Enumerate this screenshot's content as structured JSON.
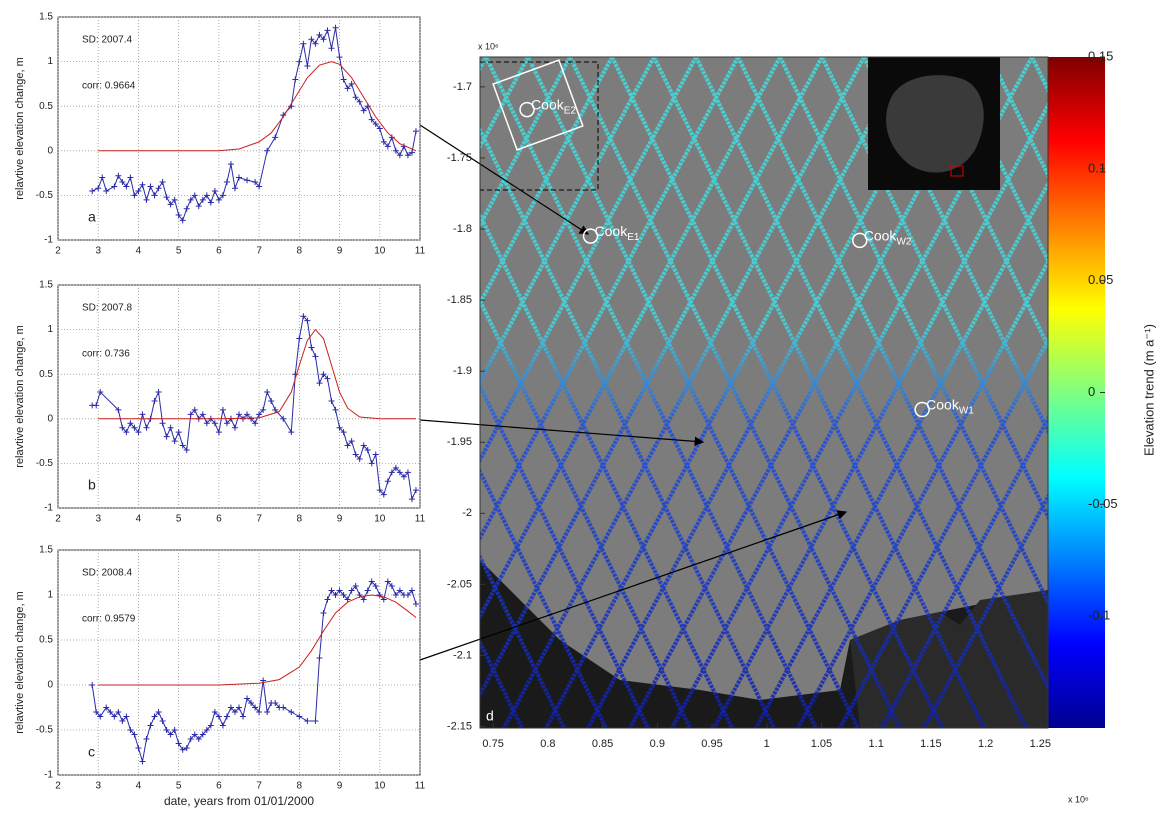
{
  "chart_data": [
    {
      "type": "line",
      "panel_label": "a",
      "annotations": [
        "SD: 2007.4",
        "corr: 0.9664"
      ],
      "ylabel": "relavtive elevation change, m",
      "xlim": [
        2,
        11
      ],
      "ylim": [
        -1,
        1.5
      ],
      "xticks": [
        2,
        3,
        4,
        5,
        6,
        7,
        8,
        9,
        10,
        11
      ],
      "yticks": [
        -1,
        -0.5,
        0,
        0.5,
        1,
        1.5
      ],
      "grid": true,
      "series": [
        {
          "color": "#2a2aa8",
          "marker": "+",
          "x": [
            2.85,
            3.0,
            3.1,
            3.2,
            3.4,
            3.5,
            3.6,
            3.7,
            3.8,
            3.9,
            4.0,
            4.1,
            4.2,
            4.3,
            4.4,
            4.5,
            4.6,
            4.7,
            4.8,
            4.9,
            5.0,
            5.1,
            5.2,
            5.3,
            5.4,
            5.5,
            5.6,
            5.7,
            5.8,
            5.9,
            6.0,
            6.1,
            6.2,
            6.3,
            6.4,
            6.5,
            6.7,
            6.9,
            7.0,
            7.2,
            7.4,
            7.6,
            7.8,
            7.9,
            8.0,
            8.1,
            8.2,
            8.3,
            8.4,
            8.5,
            8.6,
            8.7,
            8.8,
            8.9,
            9.0,
            9.1,
            9.2,
            9.3,
            9.4,
            9.5,
            9.6,
            9.7,
            9.8,
            9.9,
            10.0,
            10.1,
            10.2,
            10.3,
            10.4,
            10.5,
            10.6,
            10.7,
            10.8,
            10.9
          ],
          "values": [
            -0.45,
            -0.42,
            -0.3,
            -0.45,
            -0.4,
            -0.28,
            -0.35,
            -0.4,
            -0.3,
            -0.5,
            -0.45,
            -0.38,
            -0.55,
            -0.4,
            -0.5,
            -0.42,
            -0.35,
            -0.52,
            -0.6,
            -0.55,
            -0.72,
            -0.78,
            -0.65,
            -0.55,
            -0.5,
            -0.62,
            -0.55,
            -0.5,
            -0.58,
            -0.45,
            -0.55,
            -0.5,
            -0.35,
            -0.15,
            -0.42,
            -0.3,
            -0.33,
            -0.35,
            -0.4,
            0.0,
            0.15,
            0.4,
            0.5,
            0.8,
            1.0,
            1.2,
            0.95,
            1.25,
            1.2,
            1.3,
            1.25,
            1.35,
            1.15,
            1.38,
            1.05,
            0.8,
            0.7,
            0.75,
            0.6,
            0.55,
            0.45,
            0.5,
            0.35,
            0.3,
            0.25,
            0.1,
            0.05,
            0.15,
            0.0,
            -0.05,
            0.05,
            -0.05,
            -0.02,
            0.22
          ]
        },
        {
          "color": "#c8201e",
          "x": [
            3,
            4,
            5,
            6,
            6.5,
            7,
            7.3,
            7.6,
            7.9,
            8.2,
            8.5,
            8.8,
            9.0,
            9.3,
            9.6,
            9.9,
            10.2,
            10.5,
            10.9
          ],
          "values": [
            0,
            0,
            0,
            0,
            0.02,
            0.1,
            0.2,
            0.38,
            0.6,
            0.82,
            0.96,
            1.0,
            0.97,
            0.82,
            0.6,
            0.38,
            0.2,
            0.08,
            0.0
          ]
        }
      ]
    },
    {
      "type": "line",
      "panel_label": "b",
      "annotations": [
        "SD: 2007.8",
        "corr: 0.736"
      ],
      "ylabel": "relavtive elevation change, m",
      "xlim": [
        2,
        11
      ],
      "ylim": [
        -1,
        1.5
      ],
      "xticks": [
        2,
        3,
        4,
        5,
        6,
        7,
        8,
        9,
        10,
        11
      ],
      "yticks": [
        -1,
        -0.5,
        0,
        0.5,
        1,
        1.5
      ],
      "grid": true,
      "series": [
        {
          "color": "#2a2aa8",
          "marker": "+",
          "x": [
            2.85,
            2.95,
            3.05,
            3.5,
            3.6,
            3.7,
            3.8,
            3.9,
            4.0,
            4.1,
            4.2,
            4.3,
            4.4,
            4.5,
            4.6,
            4.7,
            4.8,
            4.9,
            5.0,
            5.1,
            5.2,
            5.3,
            5.4,
            5.5,
            5.6,
            5.7,
            5.8,
            5.9,
            6.0,
            6.1,
            6.2,
            6.3,
            6.4,
            6.5,
            6.6,
            6.7,
            6.8,
            6.9,
            7.0,
            7.1,
            7.2,
            7.3,
            7.4,
            7.6,
            7.8,
            7.9,
            8.0,
            8.1,
            8.2,
            8.3,
            8.4,
            8.5,
            8.6,
            8.7,
            8.8,
            8.9,
            9.0,
            9.1,
            9.2,
            9.3,
            9.4,
            9.5,
            9.6,
            9.7,
            9.8,
            9.9,
            10.0,
            10.1,
            10.2,
            10.3,
            10.4,
            10.5,
            10.6,
            10.7,
            10.8,
            10.9
          ],
          "values": [
            0.15,
            0.15,
            0.3,
            0.1,
            -0.1,
            -0.15,
            -0.05,
            -0.1,
            -0.15,
            0.05,
            -0.1,
            0.0,
            0.2,
            0.3,
            -0.05,
            -0.2,
            -0.1,
            -0.25,
            -0.15,
            -0.3,
            -0.35,
            0.05,
            0.1,
            0.0,
            0.05,
            -0.05,
            0.0,
            -0.05,
            -0.15,
            0.1,
            -0.05,
            0.0,
            -0.1,
            0.05,
            0.0,
            0.05,
            0.0,
            -0.05,
            0.05,
            0.1,
            0.3,
            0.2,
            0.1,
            0.0,
            -0.15,
            0.5,
            0.9,
            1.15,
            1.1,
            0.8,
            0.7,
            0.4,
            0.5,
            0.45,
            0.2,
            0.1,
            -0.1,
            -0.15,
            -0.3,
            -0.25,
            -0.4,
            -0.45,
            -0.3,
            -0.35,
            -0.5,
            -0.4,
            -0.8,
            -0.85,
            -0.7,
            -0.6,
            -0.55,
            -0.6,
            -0.65,
            -0.6,
            -0.9,
            -0.8
          ]
        },
        {
          "color": "#c8201e",
          "x": [
            3,
            6,
            7,
            7.5,
            7.8,
            8.0,
            8.2,
            8.4,
            8.6,
            8.8,
            9.0,
            9.2,
            9.5,
            10,
            10.9
          ],
          "values": [
            0,
            0,
            0.01,
            0.08,
            0.3,
            0.6,
            0.88,
            1.0,
            0.9,
            0.6,
            0.3,
            0.12,
            0.02,
            0,
            0
          ]
        }
      ]
    },
    {
      "type": "line",
      "panel_label": "c",
      "annotations": [
        "SD: 2008.4",
        "corr: 0.9579"
      ],
      "ylabel": "relavtive elevation change, m",
      "xlabel": "date, years from 01/01/2000",
      "xlim": [
        2,
        11
      ],
      "ylim": [
        -1,
        1.5
      ],
      "xticks": [
        2,
        3,
        4,
        5,
        6,
        7,
        8,
        9,
        10,
        11
      ],
      "yticks": [
        -1,
        -0.5,
        0,
        0.5,
        1,
        1.5
      ],
      "grid": true,
      "series": [
        {
          "color": "#2a2aa8",
          "marker": "+",
          "x": [
            2.85,
            2.95,
            3.05,
            3.2,
            3.3,
            3.4,
            3.5,
            3.6,
            3.7,
            3.8,
            3.9,
            4.0,
            4.1,
            4.2,
            4.3,
            4.4,
            4.5,
            4.6,
            4.7,
            4.8,
            4.9,
            5.0,
            5.1,
            5.2,
            5.3,
            5.4,
            5.5,
            5.6,
            5.7,
            5.8,
            5.9,
            6.0,
            6.1,
            6.2,
            6.3,
            6.4,
            6.5,
            6.6,
            6.7,
            6.8,
            6.9,
            7.0,
            7.1,
            7.2,
            7.3,
            7.4,
            7.5,
            7.6,
            7.8,
            8.0,
            8.2,
            8.4,
            8.5,
            8.6,
            8.7,
            8.8,
            8.9,
            9.0,
            9.1,
            9.2,
            9.3,
            9.4,
            9.5,
            9.6,
            9.7,
            9.8,
            9.9,
            10.0,
            10.1,
            10.2,
            10.3,
            10.4,
            10.5,
            10.6,
            10.7,
            10.8,
            10.9
          ],
          "values": [
            0.0,
            -0.3,
            -0.35,
            -0.25,
            -0.3,
            -0.35,
            -0.3,
            -0.4,
            -0.35,
            -0.5,
            -0.55,
            -0.7,
            -0.85,
            -0.6,
            -0.45,
            -0.35,
            -0.3,
            -0.4,
            -0.5,
            -0.55,
            -0.5,
            -0.65,
            -0.72,
            -0.7,
            -0.6,
            -0.55,
            -0.6,
            -0.55,
            -0.5,
            -0.45,
            -0.3,
            -0.35,
            -0.45,
            -0.35,
            -0.25,
            -0.3,
            -0.25,
            -0.35,
            -0.15,
            -0.2,
            -0.25,
            -0.3,
            0.05,
            -0.3,
            -0.2,
            -0.2,
            -0.25,
            -0.25,
            -0.3,
            -0.35,
            -0.4,
            -0.4,
            0.3,
            0.8,
            0.95,
            1.05,
            1.0,
            1.05,
            1.0,
            0.95,
            1.05,
            1.1,
            1.0,
            0.95,
            1.05,
            1.15,
            1.1,
            1.0,
            0.95,
            1.15,
            1.1,
            1.0,
            1.05,
            1.0,
            1.0,
            1.05,
            0.9
          ]
        },
        {
          "color": "#c8201e",
          "x": [
            3,
            6,
            7,
            7.5,
            8.0,
            8.3,
            8.6,
            8.9,
            9.2,
            9.5,
            9.8,
            10.1,
            10.4,
            10.7,
            10.9
          ],
          "values": [
            0,
            0,
            0.02,
            0.06,
            0.2,
            0.38,
            0.6,
            0.8,
            0.92,
            0.98,
            1.0,
            0.98,
            0.92,
            0.82,
            0.75
          ]
        }
      ]
    },
    {
      "type": "map",
      "panel_label": "d",
      "xlim": [
        0.738,
        1.257
      ],
      "ylim": [
        -2.151,
        -1.679
      ],
      "xticks": [
        0.75,
        0.8,
        0.85,
        0.9,
        0.95,
        1,
        1.05,
        1.1,
        1.15,
        1.2,
        1.25
      ],
      "yticks": [
        -1.7,
        -1.75,
        -1.8,
        -1.85,
        -1.9,
        -1.95,
        -2,
        -2.05,
        -2.1,
        -2.15
      ],
      "x_exponent": "x 10⁶",
      "y_exponent": "x 10⁶",
      "colorbar": {
        "label": "Elevation trend (m a⁻¹)",
        "lim": [
          -0.15,
          0.15
        ],
        "ticks": [
          0.15,
          0.1,
          0.05,
          0,
          -0.05,
          -0.1
        ]
      },
      "sites": [
        {
          "name": "Cook",
          "sub": "E2",
          "x": 0.781,
          "y": -1.716
        },
        {
          "name": "Cook",
          "sub": "E1",
          "x": 0.839,
          "y": -1.805
        },
        {
          "name": "Cook",
          "sub": "W2",
          "x": 1.085,
          "y": -1.808
        },
        {
          "name": "Cook",
          "sub": "W1",
          "x": 1.142,
          "y": -1.927
        }
      ]
    }
  ]
}
